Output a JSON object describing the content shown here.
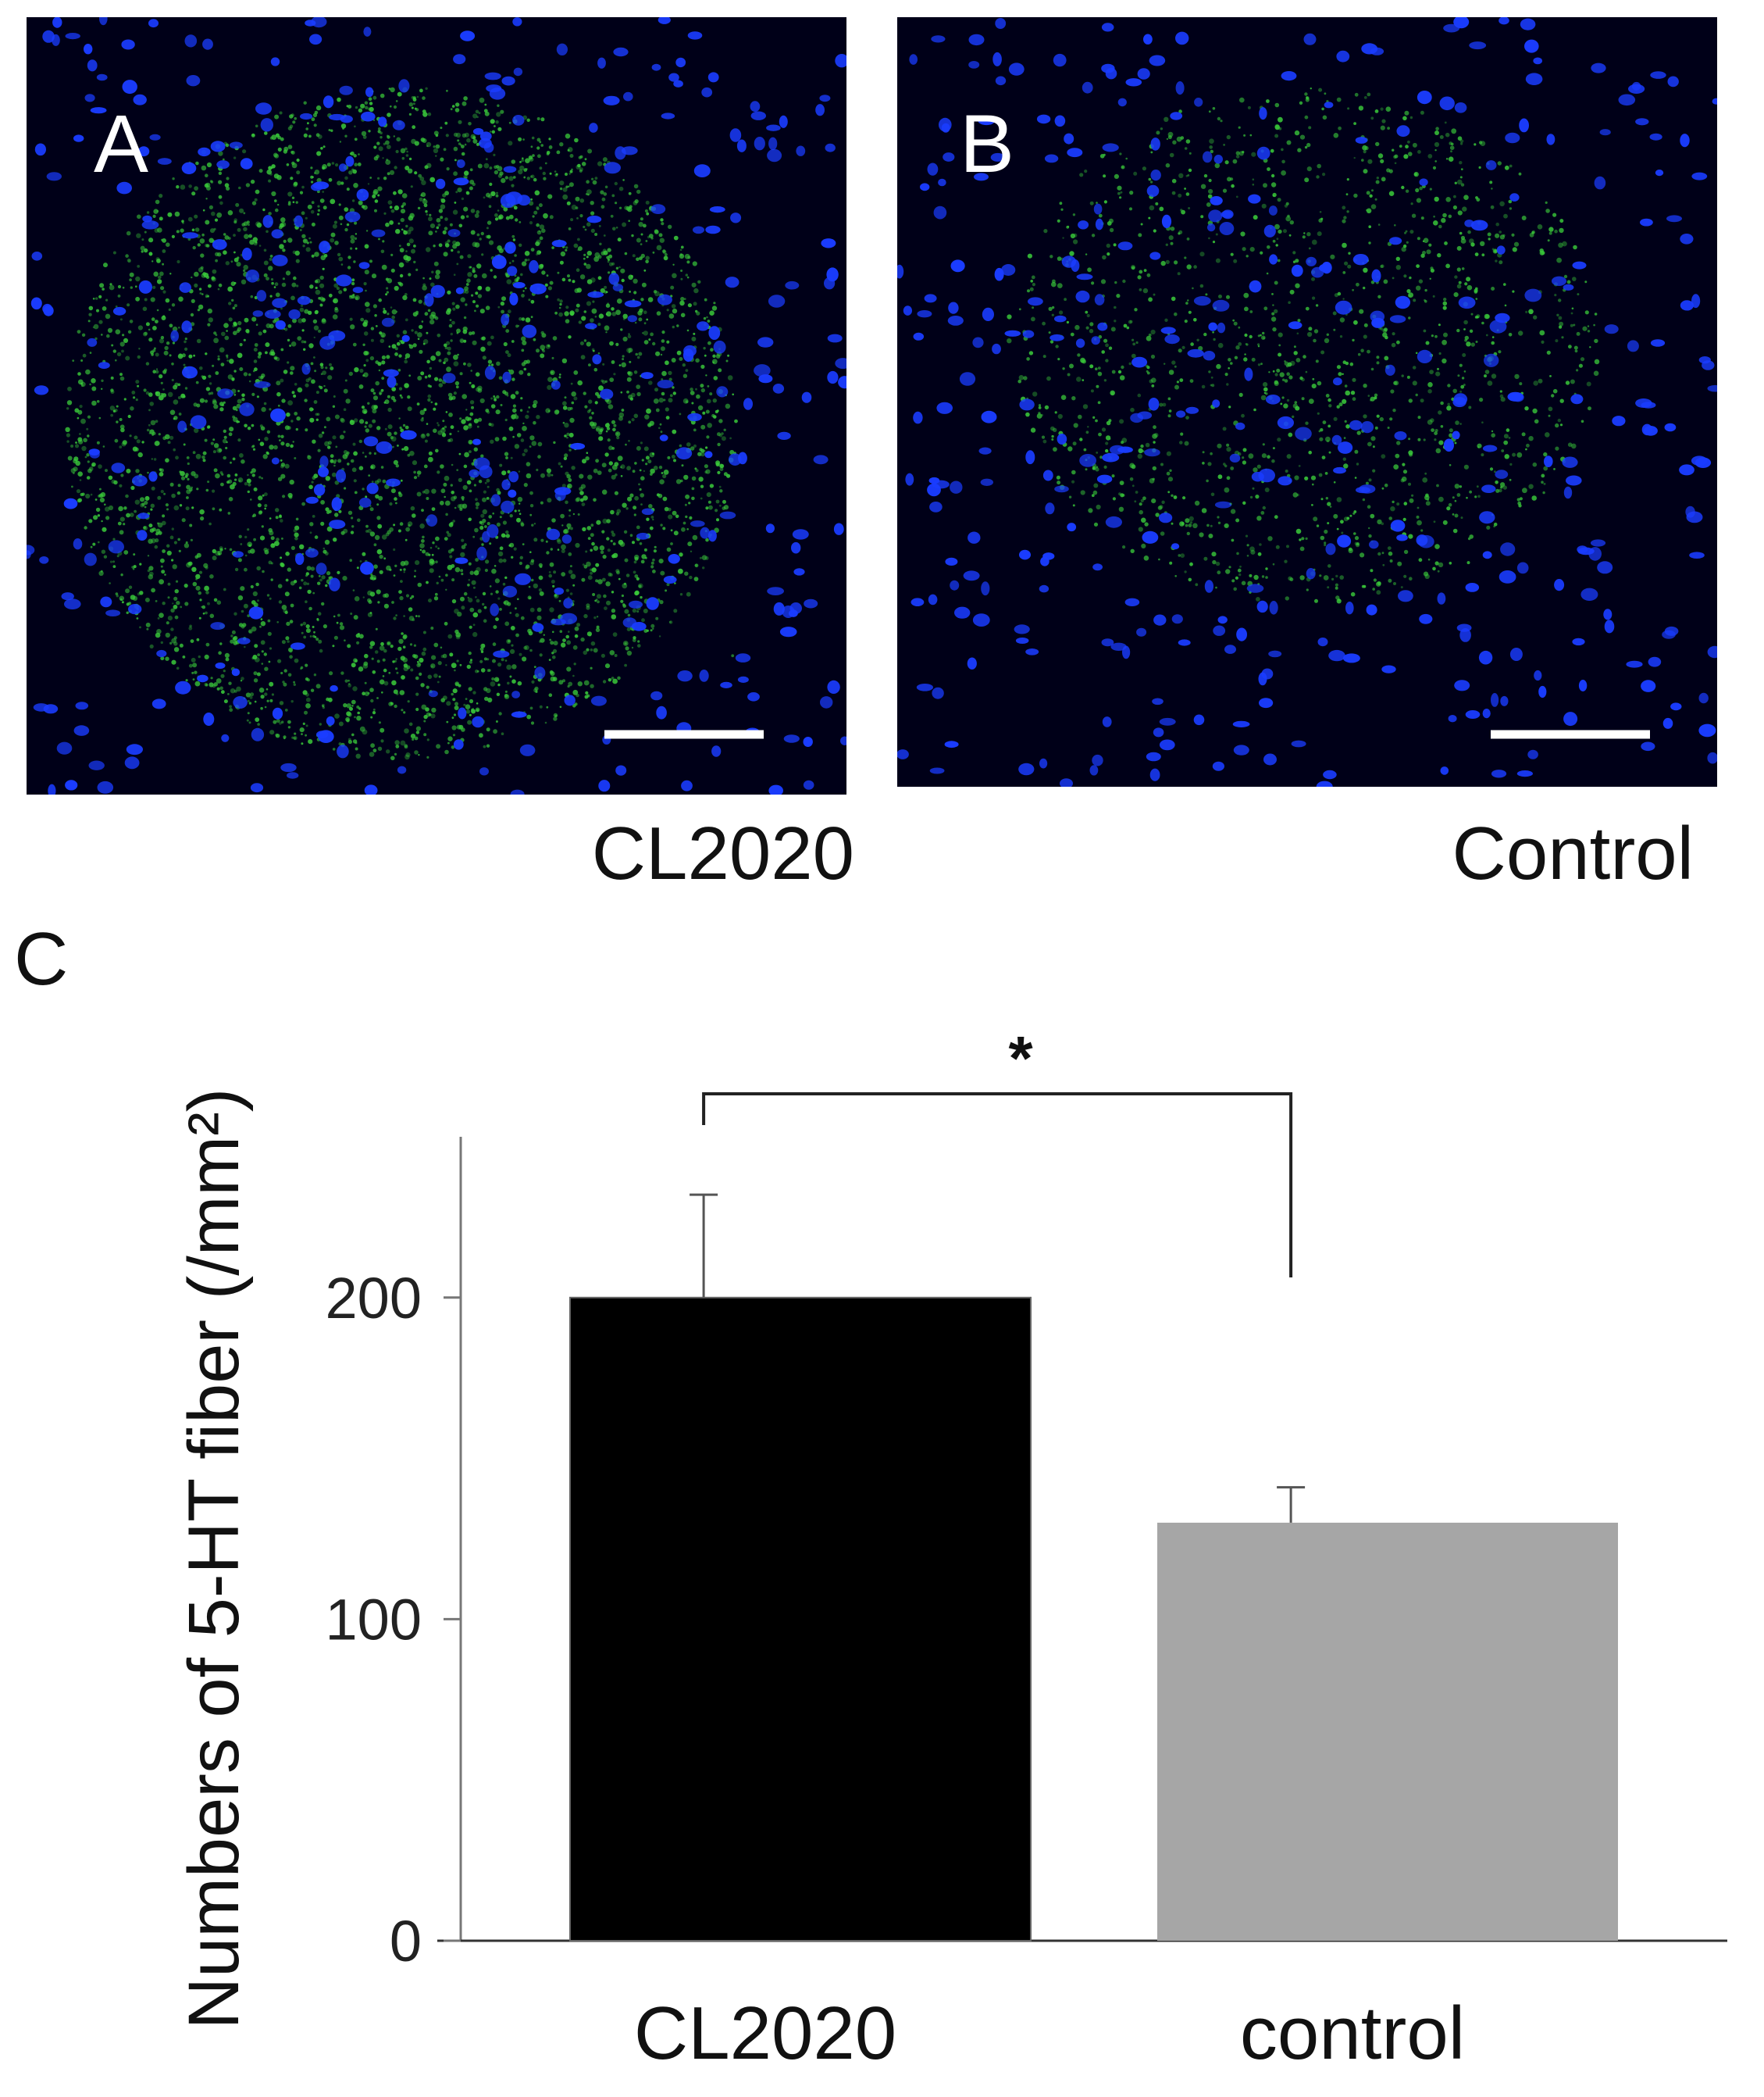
{
  "panels": [
    {
      "letter": "A",
      "caption": "CL2020"
    },
    {
      "letter": "B",
      "caption": "Control"
    }
  ],
  "panel_c_letter": "C",
  "colors": {
    "nuclei": "#1a3cff",
    "fibers": "#39c83a",
    "background": "#000018"
  },
  "chart_data": {
    "type": "bar",
    "categories": [
      "CL2020",
      "control"
    ],
    "values": [
      200,
      130
    ],
    "errors": [
      32,
      11
    ],
    "bar_colors": [
      "#000000",
      "#a6a6a6"
    ],
    "ylabel": "Numbers of 5-HT fiber (/mm²)",
    "ylim": [
      0,
      250
    ],
    "yticks": [
      0,
      100,
      200
    ],
    "significance": {
      "between": [
        0,
        1
      ],
      "label": "*"
    }
  }
}
